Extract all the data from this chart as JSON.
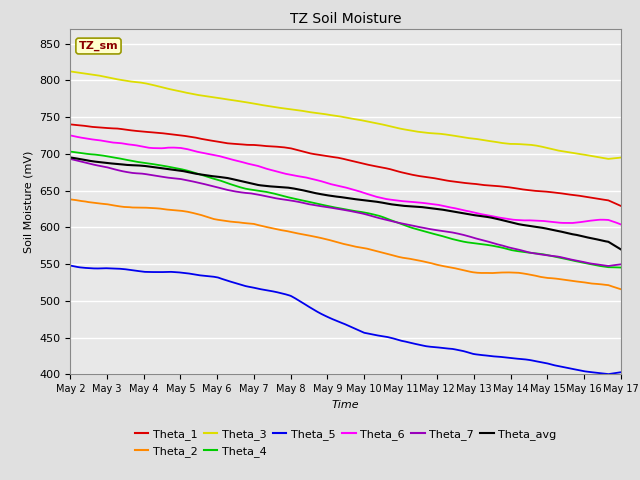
{
  "title": "TZ Soil Moisture",
  "xlabel": "Time",
  "ylabel": "Soil Moisture (mV)",
  "ylim": [
    400,
    870
  ],
  "xlim": [
    0,
    15
  ],
  "background_color": "#e0e0e0",
  "plot_bg_color": "#e8e8e8",
  "grid_color": "white",
  "x_tick_labels": [
    "May 2",
    "May 3",
    "May 4",
    "May 5",
    "May 6",
    "May 7",
    "May 8",
    "May 9",
    "May 10",
    "May 11",
    "May 12",
    "May 13",
    "May 14",
    "May 15",
    "May 16",
    "May 17"
  ],
  "series_order": [
    "Theta_3",
    "Theta_1",
    "Theta_6",
    "Theta_4",
    "Theta_7",
    "Theta_avg",
    "Theta_2",
    "Theta_5"
  ],
  "series": {
    "Theta_1": {
      "color": "#dd0000",
      "waypoints_x": [
        0,
        3,
        6,
        9,
        12,
        15
      ],
      "waypoints_y": [
        740,
        720,
        700,
        670,
        645,
        623
      ],
      "noise": 3.0
    },
    "Theta_2": {
      "color": "#ff8800",
      "waypoints_x": [
        0,
        3,
        5,
        7,
        10,
        13,
        15
      ],
      "waypoints_y": [
        638,
        622,
        608,
        578,
        548,
        520,
        510
      ],
      "noise": 4.0
    },
    "Theta_3": {
      "color": "#dddd00",
      "waypoints_x": [
        0,
        3,
        6,
        9,
        12,
        15
      ],
      "waypoints_y": [
        812,
        790,
        762,
        738,
        715,
        700
      ],
      "noise": 2.5
    },
    "Theta_4": {
      "color": "#00cc00",
      "waypoints_x": [
        0,
        3,
        6,
        9,
        12,
        15
      ],
      "waypoints_y": [
        703,
        678,
        645,
        608,
        575,
        548
      ],
      "noise": 3.0
    },
    "Theta_5": {
      "color": "#0000ee",
      "waypoints_x": [
        0,
        2,
        4,
        6,
        8,
        9,
        10,
        11,
        12,
        13,
        14,
        15
      ],
      "waypoints_y": [
        548,
        535,
        530,
        510,
        465,
        452,
        445,
        435,
        430,
        425,
        415,
        408
      ],
      "noise": 3.5
    },
    "Theta_6": {
      "color": "#ff00ff",
      "waypoints_x": [
        0,
        3,
        6,
        9,
        12,
        15
      ],
      "waypoints_y": [
        725,
        700,
        668,
        638,
        615,
        598
      ],
      "noise": 4.0
    },
    "Theta_7": {
      "color": "#9900bb",
      "waypoints_x": [
        0,
        3,
        6,
        9,
        12,
        15
      ],
      "waypoints_y": [
        693,
        670,
        640,
        610,
        578,
        555
      ],
      "noise": 3.0
    },
    "Theta_avg": {
      "color": "#000000",
      "waypoints_x": [
        0,
        3,
        6,
        9,
        12,
        15
      ],
      "waypoints_y": [
        695,
        673,
        647,
        618,
        588,
        562
      ],
      "noise": 2.5
    }
  },
  "annotation_text": "TZ_sm",
  "annotation_color": "#8b0000",
  "annotation_bg": "#ffffcc",
  "annotation_border": "#999900",
  "legend_order": [
    "Theta_1",
    "Theta_2",
    "Theta_3",
    "Theta_4",
    "Theta_5",
    "Theta_6",
    "Theta_7",
    "Theta_avg"
  ]
}
